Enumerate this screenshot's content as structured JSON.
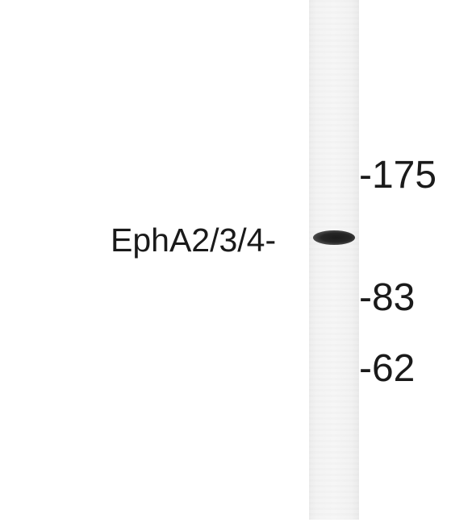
{
  "target_label": "EphA2/3/4-",
  "markers": {
    "m175": "-175",
    "m83": "-83",
    "m62": "-62"
  },
  "colors": {
    "background": "#ffffff",
    "lane": "#f3f3f3",
    "band": "#1c1c1c",
    "text": "#1a1a1a"
  }
}
